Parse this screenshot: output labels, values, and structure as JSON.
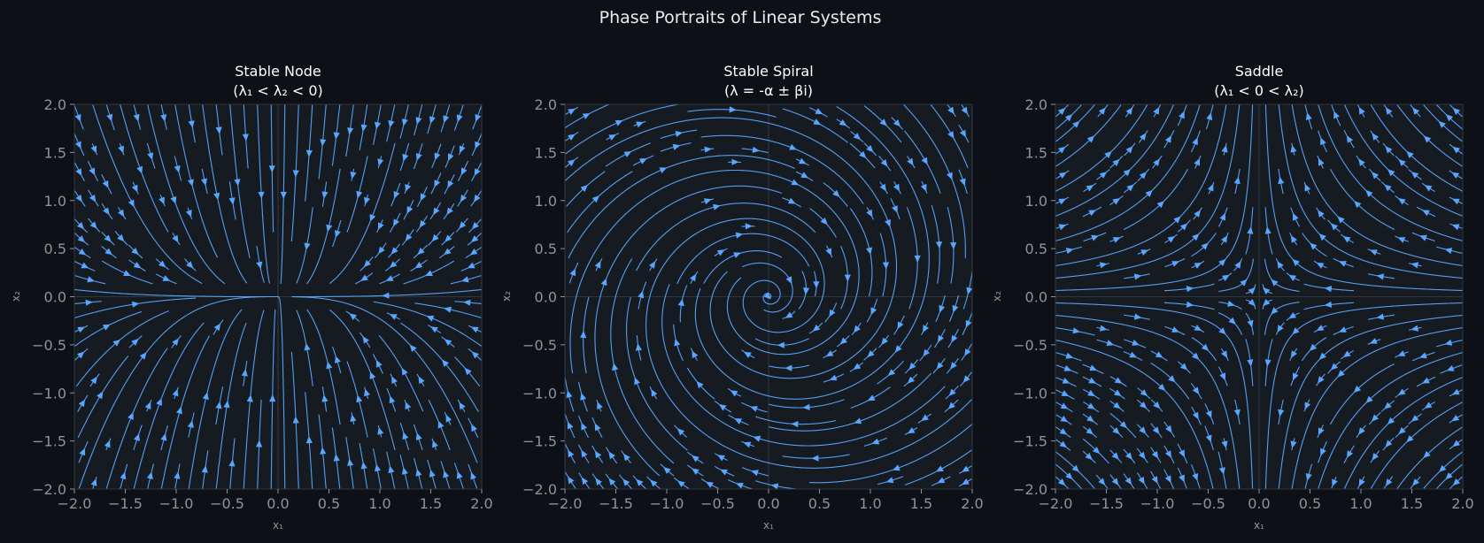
{
  "figure": {
    "title": "Phase Portraits of Linear Systems",
    "colors": {
      "background": "#0d1117",
      "panel": "#161b22",
      "stream": "#58a6ff",
      "spine": "#30363d",
      "tick_text": "#8b949e",
      "title_text": "#ffffff"
    }
  },
  "chart_data": [
    {
      "type": "streamplot",
      "title_line1": "Stable Node",
      "title_line2": "(λ₁ < λ₂ < 0)",
      "xlabel": "x₁",
      "ylabel": "x₂",
      "xlim": [
        -2.0,
        2.0
      ],
      "ylim": [
        -2.0,
        2.0
      ],
      "xticks": [
        "−2.0",
        "−1.5",
        "−1.0",
        "−0.5",
        "0.0",
        "0.5",
        "1.0",
        "1.5",
        "2.0"
      ],
      "yticks": [
        "−2.0",
        "−1.5",
        "−1.0",
        "−0.5",
        "0.0",
        "0.5",
        "1.0",
        "1.5",
        "2.0"
      ],
      "system_matrix": [
        [
          -1.0,
          0.0
        ],
        [
          0.0,
          -3.0
        ]
      ],
      "equilibrium": [
        0.0,
        0.0
      ],
      "grid": "zero-lines"
    },
    {
      "type": "streamplot",
      "title_line1": "Stable Spiral",
      "title_line2": "(λ = -α ± βi)",
      "xlabel": "x₁",
      "ylabel": "x₂",
      "xlim": [
        -2.0,
        2.0
      ],
      "ylim": [
        -2.0,
        2.0
      ],
      "xticks": [
        "−2.0",
        "−1.5",
        "−1.0",
        "−0.5",
        "0.0",
        "0.5",
        "1.0",
        "1.5",
        "2.0"
      ],
      "yticks": [
        "−2.0",
        "−1.5",
        "−1.0",
        "−0.5",
        "0.0",
        "0.5",
        "1.0",
        "1.5",
        "2.0"
      ],
      "system_matrix": [
        [
          -0.5,
          2.0
        ],
        [
          -2.0,
          -0.5
        ]
      ],
      "equilibrium": [
        0.0,
        0.0
      ],
      "grid": "zero-lines"
    },
    {
      "type": "streamplot",
      "title_line1": "Saddle",
      "title_line2": "(λ₁ < 0 < λ₂)",
      "xlabel": "x₁",
      "ylabel": "x₂",
      "xlim": [
        -2.0,
        2.0
      ],
      "ylim": [
        -2.0,
        2.0
      ],
      "xticks": [
        "−2.0",
        "−1.5",
        "−1.0",
        "−0.5",
        "0.0",
        "0.5",
        "1.0",
        "1.5",
        "2.0"
      ],
      "yticks": [
        "−2.0",
        "−1.5",
        "−1.0",
        "−0.5",
        "0.0",
        "0.5",
        "1.0",
        "1.5",
        "2.0"
      ],
      "system_matrix": [
        [
          -1.0,
          0.0
        ],
        [
          0.0,
          1.0
        ]
      ],
      "equilibrium": [
        0.0,
        0.0
      ],
      "grid": "zero-lines"
    }
  ]
}
